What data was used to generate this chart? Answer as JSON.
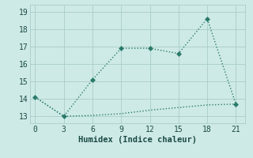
{
  "xlabel": "Humidex (Indice chaleur)",
  "line1_x": [
    0,
    3,
    6,
    9,
    12,
    15,
    18,
    21
  ],
  "line1_y": [
    14.1,
    13.0,
    15.1,
    16.9,
    16.9,
    16.6,
    18.6,
    13.7
  ],
  "line2_x": [
    0,
    3,
    6,
    9,
    12,
    15,
    18,
    21
  ],
  "line2_y": [
    14.1,
    13.0,
    13.05,
    13.15,
    13.35,
    13.5,
    13.65,
    13.7
  ],
  "line_color": "#2a7a6a",
  "bg_color": "#ceeae6",
  "plot_bg_color": "#ceeae6",
  "grid_color": "#a8cdc9",
  "xlim": [
    -0.5,
    22
  ],
  "ylim": [
    12.6,
    19.4
  ],
  "xticks": [
    0,
    3,
    6,
    9,
    12,
    15,
    18,
    21
  ],
  "yticks": [
    13,
    14,
    15,
    16,
    17,
    18,
    19
  ],
  "marker1": "D",
  "marker_size1": 3,
  "linewidth": 1.0,
  "font_color": "#1a4a45",
  "xlabel_fontsize": 7.5,
  "tick_fontsize": 7
}
